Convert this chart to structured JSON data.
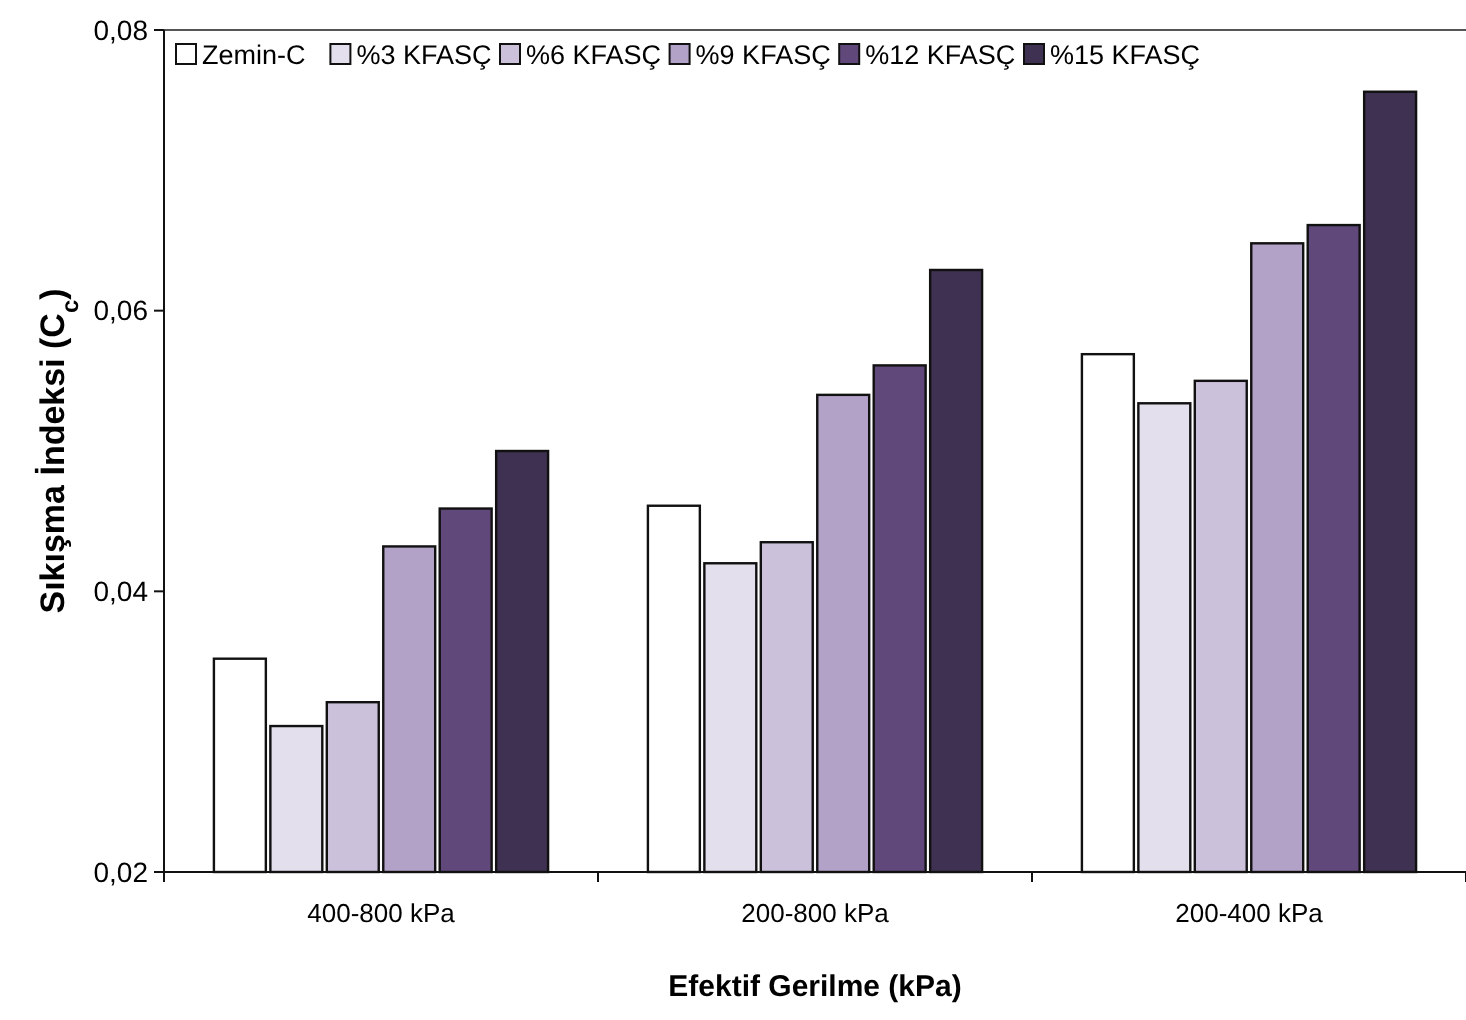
{
  "chart_data": {
    "type": "bar",
    "xlabel": "Efektif Gerilme (kPa)",
    "ylabel": "Sıkışma İndeksi  (C$_{c}$)",
    "categories": [
      "400-800 kPa",
      "200-800 kPa",
      "200-400 kPa"
    ],
    "series": [
      {
        "name": "Zemin-C",
        "color": "#ffffff",
        "values": [
          0.0352,
          0.0461,
          0.0569
        ]
      },
      {
        "name": "%3 KFASÇ",
        "color": "#e4dfec",
        "values": [
          0.0304,
          0.042,
          0.0534
        ]
      },
      {
        "name": "%6 KFASÇ",
        "color": "#ccc1da",
        "values": [
          0.0321,
          0.0435,
          0.055
        ]
      },
      {
        "name": "%9 KFASÇ",
        "color": "#b3a2c7",
        "values": [
          0.0432,
          0.054,
          0.0648
        ]
      },
      {
        "name": "%12 KFASÇ",
        "color": "#60497a",
        "values": [
          0.0459,
          0.0561,
          0.0661
        ]
      },
      {
        "name": "%15 KFASÇ",
        "color": "#3f3151",
        "values": [
          0.05,
          0.0629,
          0.0756
        ]
      }
    ],
    "ylim": [
      0.02,
      0.08
    ],
    "yticks": [
      {
        "value": 0.02,
        "label": "0,02"
      },
      {
        "value": 0.04,
        "label": "0,04"
      },
      {
        "value": 0.06,
        "label": "0,06"
      },
      {
        "value": 0.08,
        "label": "0,08"
      }
    ],
    "grid": false,
    "legend": "top"
  }
}
